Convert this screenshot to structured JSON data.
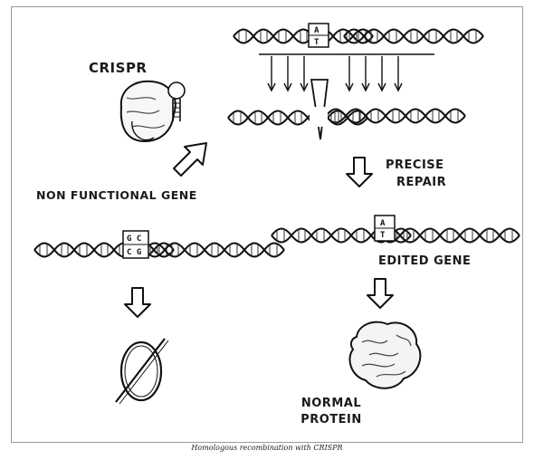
{
  "labels": {
    "crispr": "CRISPR",
    "non_functional_gene": "NON FUNCTIONAL GENE",
    "precise_repair_line1": "PRECISE",
    "precise_repair_line2": "REPAIR",
    "edited_gene": "EDITED GENE",
    "normal_protein_line1": "NORMAL",
    "normal_protein_line2": "PROTEIN"
  },
  "segments": {
    "template_top": "A",
    "template_bottom": "T",
    "faulty_top": "G C",
    "faulty_bottom": "C G",
    "edited_top": "A",
    "edited_bottom": "T"
  },
  "caption": "Homologous recombination with CRISPR"
}
